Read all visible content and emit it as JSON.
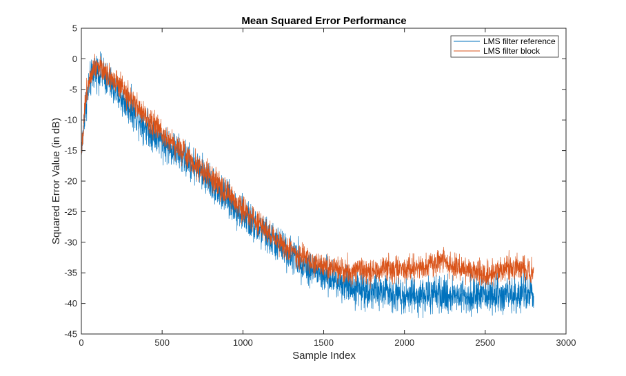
{
  "chart_data": {
    "type": "line",
    "title": "Mean Squared Error Performance",
    "xlabel": "Sample Index",
    "ylabel": "Squared Error Value (in dB)",
    "xlim": [
      0,
      3000
    ],
    "ylim": [
      -45,
      5
    ],
    "xticks": [
      0,
      500,
      1000,
      1500,
      2000,
      2500,
      3000
    ],
    "yticks": [
      5,
      0,
      -5,
      -10,
      -15,
      -20,
      -25,
      -30,
      -35,
      -40,
      -45
    ],
    "grid": false,
    "legend_position": "top-right",
    "series": [
      {
        "name": "LMS filter reference",
        "color": "#0072BD",
        "trend_x": [
          0,
          20,
          50,
          80,
          100,
          150,
          200,
          300,
          400,
          500,
          600,
          700,
          800,
          900,
          1000,
          1100,
          1200,
          1300,
          1400,
          1500,
          1600,
          1700,
          1800,
          1900,
          2000,
          2100,
          2200,
          2300,
          2400,
          2500,
          2600,
          2700,
          2800
        ],
        "trend_y": [
          -16,
          -9,
          -4,
          -2,
          -2,
          -3,
          -5,
          -8,
          -11,
          -13.5,
          -15.5,
          -17.5,
          -20,
          -23,
          -25.5,
          -28,
          -30,
          -32,
          -34,
          -35.5,
          -36.5,
          -37.5,
          -38,
          -38.2,
          -38.5,
          -38.7,
          -38.8,
          -38.6,
          -38.6,
          -38.7,
          -38.5,
          -38.6,
          -38.5
        ],
        "noise_amplitude_db": 2.2
      },
      {
        "name": "LMS filter block",
        "color": "#D95319",
        "trend_x": [
          0,
          20,
          50,
          80,
          100,
          150,
          200,
          300,
          400,
          500,
          600,
          700,
          800,
          900,
          1000,
          1100,
          1200,
          1300,
          1400,
          1500,
          1600,
          1700,
          1800,
          1900,
          2000,
          2100,
          2200,
          2250,
          2300,
          2400,
          2500,
          2600,
          2700,
          2800
        ],
        "trend_y": [
          -16,
          -8,
          -3,
          -1,
          -1,
          -2,
          -3.5,
          -6.5,
          -9.5,
          -12,
          -14.5,
          -17,
          -19.5,
          -22,
          -24.5,
          -27,
          -29.5,
          -31.5,
          -33,
          -34,
          -34.5,
          -34.8,
          -34.6,
          -34.3,
          -34.5,
          -34.2,
          -33.2,
          -33,
          -33.8,
          -34.5,
          -35.5,
          -34.5,
          -34.2,
          -34.8
        ],
        "noise_amplitude_db": 1.6
      }
    ]
  }
}
